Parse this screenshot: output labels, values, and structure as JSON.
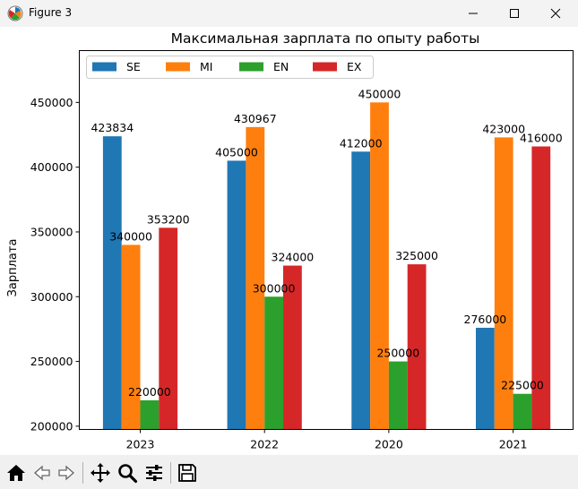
{
  "window": {
    "title": "Figure 3"
  },
  "toolbar": {
    "buttons": [
      "home-icon",
      "back-icon",
      "forward-icon",
      "pan-icon",
      "zoom-icon",
      "configure-subplots-icon",
      "save-icon"
    ]
  },
  "chart_data": {
    "type": "bar",
    "title": "Максимальная зарплата по опыту работы",
    "xlabel": "",
    "ylabel": "Зарплата",
    "categories": [
      "2023",
      "2022",
      "2020",
      "2021"
    ],
    "ylim": [
      197500,
      490000
    ],
    "yticks": [
      200000,
      250000,
      300000,
      350000,
      400000,
      450000
    ],
    "ytick_labels": [
      "200000",
      "250000",
      "300000",
      "350000",
      "400000",
      "450000"
    ],
    "legend_position": "top-left",
    "series": [
      {
        "name": "SE",
        "color": "#1f77b4",
        "values": [
          423834,
          405000,
          412000,
          276000
        ],
        "labels": [
          "423834",
          "405000",
          "412000",
          "276000"
        ]
      },
      {
        "name": "MI",
        "color": "#ff7f0e",
        "values": [
          340000,
          430967,
          450000,
          423000
        ],
        "labels": [
          "340000",
          "430967",
          "450000",
          "423000"
        ]
      },
      {
        "name": "EN",
        "color": "#2ca02c",
        "values": [
          220000,
          300000,
          250000,
          225000
        ],
        "labels": [
          "220000",
          "300000",
          "250000",
          "225000"
        ]
      },
      {
        "name": "EX",
        "color": "#d62728",
        "values": [
          353200,
          324000,
          325000,
          416000
        ],
        "labels": [
          "353200",
          "324000",
          "325000",
          "416000"
        ]
      }
    ]
  }
}
